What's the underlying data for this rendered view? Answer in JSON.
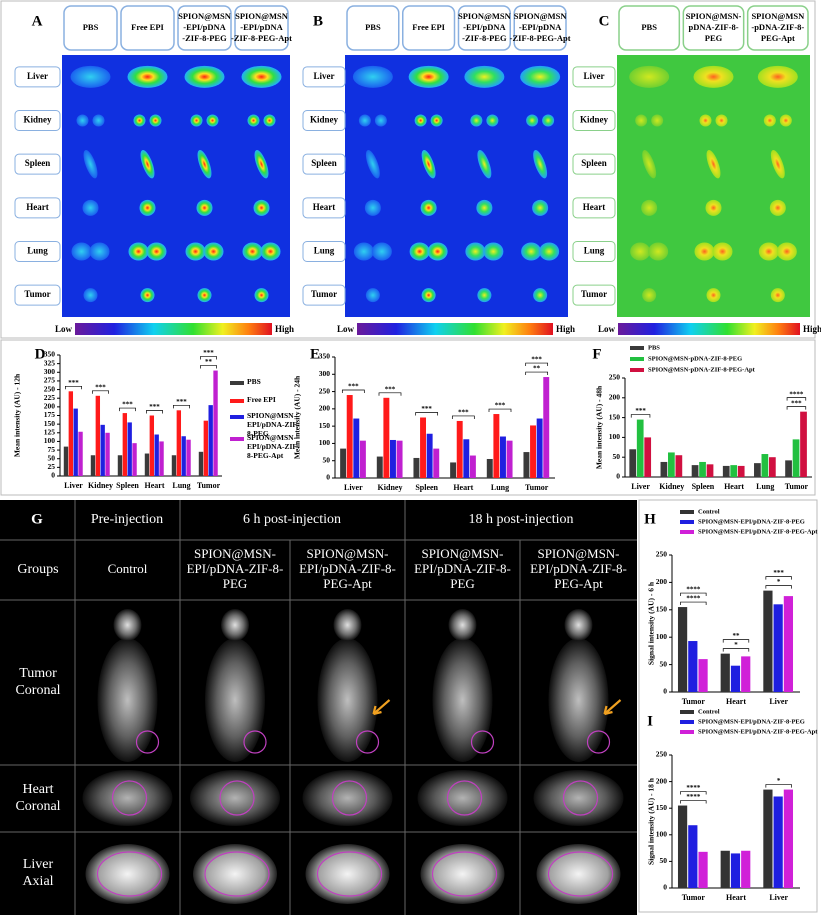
{
  "fluorescence_panels": [
    {
      "panel": "A",
      "groups": [
        [
          "PBS"
        ],
        [
          "Free EPI"
        ],
        [
          "SPION@MSN",
          "-EPI/pDNA",
          "-ZIF-8-PEG"
        ],
        [
          "SPION@MSN",
          "-EPI/pDNA",
          "-ZIF-8-PEG-Apt"
        ]
      ],
      "organs": [
        "Liver",
        "Kidney",
        "Spleen",
        "Heart",
        "Lung",
        "Tumor"
      ],
      "scale_low": "Low",
      "scale_high": "High"
    },
    {
      "panel": "B",
      "groups": [
        [
          "PBS"
        ],
        [
          "Free EPI"
        ],
        [
          "SPION@MSN",
          "-EPI/pDNA",
          "-ZIF-8-PEG"
        ],
        [
          "SPION@MSN",
          "-EPI/pDNA",
          "-ZIF-8-PEG-Apt"
        ]
      ],
      "organs": [
        "Liver",
        "Kidney",
        "Spleen",
        "Heart",
        "Lung",
        "Tumor"
      ],
      "scale_low": "Low",
      "scale_high": "High"
    },
    {
      "panel": "C",
      "groups": [
        [
          "PBS"
        ],
        [
          "SPION@MSN-",
          "pDNA-ZIF-8-",
          "PEG"
        ],
        [
          "SPION@MSN",
          "-pDNA-ZIF-8-",
          "PEG-Apt"
        ]
      ],
      "organs": [
        "Liver",
        "Kidney",
        "Spleen",
        "Heart",
        "Lung",
        "Tumor"
      ],
      "scale_low": "Low",
      "scale_high": "High"
    }
  ],
  "chart_data": [
    {
      "type": "bar",
      "panel": "D",
      "y_label": "Mean intensity (AU) - 12h",
      "categories": [
        "Liver",
        "Kidney",
        "Spleen",
        "Heart",
        "Lung",
        "Tumor"
      ],
      "series": [
        {
          "name": "PBS",
          "color": "#3a3a3a",
          "values": [
            85,
            60,
            60,
            65,
            60,
            70
          ]
        },
        {
          "name": "Free EPI",
          "color": "#ff1a1a",
          "values": [
            245,
            232,
            182,
            175,
            190,
            160
          ]
        },
        {
          "name": "SPION@MSN-EPI/pDNA-ZIF-8-PEG",
          "color": "#1f1fe0",
          "values": [
            195,
            148,
            155,
            120,
            115,
            205
          ]
        },
        {
          "name": "SPION@MSN-EPI/pDNA-ZIF-8-PEG-Apt",
          "color": "#c020d0",
          "values": [
            128,
            125,
            95,
            100,
            105,
            305
          ]
        }
      ],
      "ylim": [
        0,
        350
      ],
      "yticks": [
        0,
        25,
        50,
        75,
        100,
        125,
        150,
        175,
        200,
        225,
        250,
        275,
        300,
        325,
        350
      ],
      "annotations": [
        {
          "text": "***",
          "category": "Liver"
        },
        {
          "text": "***",
          "category": "Kidney"
        },
        {
          "text": "***",
          "category": "Spleen"
        },
        {
          "text": "***",
          "category": "Heart"
        },
        {
          "text": "***",
          "category": "Lung"
        },
        {
          "text": "**",
          "category": "Tumor"
        },
        {
          "text": "***",
          "category": "Tumor"
        }
      ]
    },
    {
      "type": "bar",
      "panel": "E",
      "y_label": "Mean intensity (AU) - 24h",
      "categories": [
        "Liver",
        "Kidney",
        "Spleen",
        "Heart",
        "Lung",
        "Tumor"
      ],
      "series": [
        {
          "color": "#3a3a3a",
          "values": [
            85,
            62,
            58,
            45,
            55,
            75
          ]
        },
        {
          "color": "#ff1a1a",
          "values": [
            240,
            232,
            175,
            165,
            185,
            152
          ]
        },
        {
          "color": "#1f1fe0",
          "values": [
            172,
            110,
            128,
            112,
            120,
            172
          ]
        },
        {
          "color": "#c020d0",
          "values": [
            108,
            108,
            85,
            65,
            108,
            292
          ]
        }
      ],
      "ylim": [
        0,
        350
      ],
      "yticks": [
        0,
        50,
        100,
        150,
        200,
        250,
        300,
        350
      ],
      "annotations": [
        {
          "text": "***",
          "category": "Liver"
        },
        {
          "text": "***",
          "category": "Kidney"
        },
        {
          "text": "***",
          "category": "Spleen"
        },
        {
          "text": "***",
          "category": "Heart"
        },
        {
          "text": "***",
          "category": "Lung"
        },
        {
          "text": "**",
          "category": "Tumor"
        },
        {
          "text": "***",
          "category": "Tumor"
        }
      ]
    },
    {
      "type": "bar",
      "panel": "F",
      "y_label": "Mean intensity (AU) - 48h",
      "categories": [
        "Liver",
        "Kidney",
        "Spleen",
        "Heart",
        "Lung",
        "Tumor"
      ],
      "series": [
        {
          "name": "PBS",
          "color": "#3a3a3a",
          "values": [
            70,
            38,
            30,
            28,
            35,
            42
          ]
        },
        {
          "name": "SPION@MSN-pDNA-ZIF-8-PEG",
          "color": "#22c040",
          "values": [
            145,
            62,
            38,
            30,
            58,
            95
          ]
        },
        {
          "name": "SPION@MSN-pDNA-ZIF-8-PEG-Apt",
          "color": "#d01040",
          "values": [
            100,
            55,
            32,
            28,
            50,
            165
          ]
        }
      ],
      "ylim": [
        0,
        250
      ],
      "yticks": [
        0,
        50,
        100,
        150,
        200,
        250
      ],
      "annotations": [
        {
          "text": "***",
          "category": "Liver"
        },
        {
          "text": "***",
          "category": "Tumor"
        },
        {
          "text": "****",
          "category": "Tumor"
        }
      ]
    },
    {
      "type": "bar",
      "panel": "H",
      "y_label": "Signal intensity (AU) - 6 h",
      "categories": [
        "Tumor",
        "Heart",
        "Liver"
      ],
      "series": [
        {
          "name": "Control",
          "color": "#333333",
          "values": [
            155,
            70,
            185
          ]
        },
        {
          "name": "SPION@MSN-EPI/pDNA-ZIF-8-PEG",
          "color": "#1f1fe0",
          "values": [
            93,
            48,
            160
          ]
        },
        {
          "name": "SPION@MSN-EPI/pDNA-ZIF-8-PEG-Apt",
          "color": "#d020d8",
          "values": [
            60,
            65,
            175
          ]
        }
      ],
      "ylim": [
        0,
        250
      ],
      "yticks": [
        0,
        50,
        100,
        150,
        200,
        250
      ],
      "annotations": [
        {
          "text": "****",
          "category": "Tumor"
        },
        {
          "text": "****",
          "category": "Tumor"
        },
        {
          "text": "*",
          "category": "Heart"
        },
        {
          "text": "**",
          "category": "Heart"
        },
        {
          "text": "*",
          "category": "Liver"
        },
        {
          "text": "***",
          "category": "Liver"
        }
      ]
    },
    {
      "type": "bar",
      "panel": "I",
      "y_label": "Signal intensity (AU) - 18 h",
      "categories": [
        "Tumor",
        "Heart",
        "Liver"
      ],
      "series": [
        {
          "name": "Control",
          "color": "#333333",
          "values": [
            155,
            70,
            185
          ]
        },
        {
          "name": "SPION@MSN-EPI/pDNA-ZIF-8-PEG",
          "color": "#1f1fe0",
          "values": [
            118,
            65,
            172
          ]
        },
        {
          "name": "SPION@MSN-EPI/pDNA-ZIF-8-PEG-Apt",
          "color": "#d020d8",
          "values": [
            68,
            70,
            185
          ]
        }
      ],
      "ylim": [
        0,
        250
      ],
      "yticks": [
        0,
        50,
        100,
        150,
        200,
        250
      ],
      "annotations": [
        {
          "text": "****",
          "category": "Tumor"
        },
        {
          "text": "****",
          "category": "Tumor"
        },
        {
          "text": "*",
          "category": "Liver"
        }
      ]
    }
  ],
  "mri_panel": {
    "panel": "G",
    "timepoints": [
      "Pre-injection",
      "6 h post-injection",
      "18 h post-injection"
    ],
    "groups_label": "Groups",
    "groups": [
      [
        "Control"
      ],
      [
        "SPION@MSN-",
        "EPI/pDNA-ZIF-8-",
        "PEG"
      ],
      [
        "SPION@MSN-",
        "EPI/pDNA-ZIF-8-",
        "PEG-Apt"
      ],
      [
        "SPION@MSN-",
        "EPI/pDNA-ZIF-8-",
        "PEG"
      ],
      [
        "SPION@MSN-",
        "EPI/pDNA-ZIF-8-",
        "PEG-Apt"
      ]
    ],
    "rows": [
      [
        "Tumor",
        "Coronal"
      ],
      [
        "Heart",
        "Coronal"
      ],
      [
        "Liver",
        "Axial"
      ]
    ]
  }
}
